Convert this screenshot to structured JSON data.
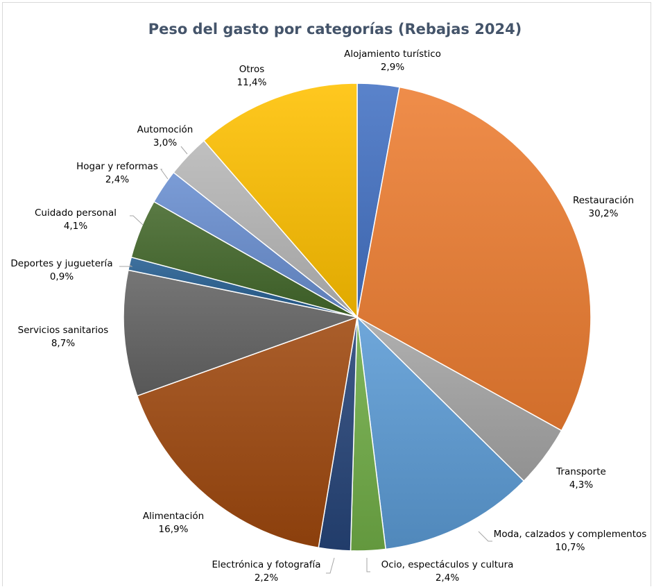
{
  "chart_data": {
    "type": "pie",
    "title": "Peso del gasto por categorías (Rebajas 2024)",
    "unit": "%",
    "slices": [
      {
        "label": "Alojamiento turístico",
        "value": 2.9,
        "value_label": "2,9%",
        "color": "#4472c4"
      },
      {
        "label": "Restauración",
        "value": 30.2,
        "value_label": "30,2%",
        "color": "#ed7d31"
      },
      {
        "label": "Transporte",
        "value": 4.3,
        "value_label": "4,3%",
        "color": "#a5a5a5"
      },
      {
        "label": "Moda, calzados y complementos",
        "value": 10.7,
        "value_label": "10,7%",
        "color": "#5b9bd5"
      },
      {
        "label": "Ocio, espectáculos y cultura",
        "value": 2.4,
        "value_label": "2,4%",
        "color": "#70ad47"
      },
      {
        "label": "Electrónica y fotografía",
        "value": 2.2,
        "value_label": "2,2%",
        "color": "#264478"
      },
      {
        "label": "Alimentación",
        "value": 16.9,
        "value_label": "16,9%",
        "color": "#9e480e"
      },
      {
        "label": "Servicios sanitarios",
        "value": 8.7,
        "value_label": "8,7%",
        "color": "#636363"
      },
      {
        "label": "Deportes y juguetería",
        "value": 0.9,
        "value_label": "0,9%",
        "color": "#255e91"
      },
      {
        "label": "Cuidado personal",
        "value": 4.1,
        "value_label": "4,1%",
        "color": "#43682b"
      },
      {
        "label": "Hogar y reformas",
        "value": 2.4,
        "value_label": "2,4%",
        "color": "#698ed0"
      },
      {
        "label": "Automoción",
        "value": 3.0,
        "value_label": "3,0%",
        "color": "#b7b7b7"
      },
      {
        "label": "Otros",
        "value": 11.4,
        "value_label": "11,4%",
        "color": "#ffc000"
      }
    ]
  }
}
